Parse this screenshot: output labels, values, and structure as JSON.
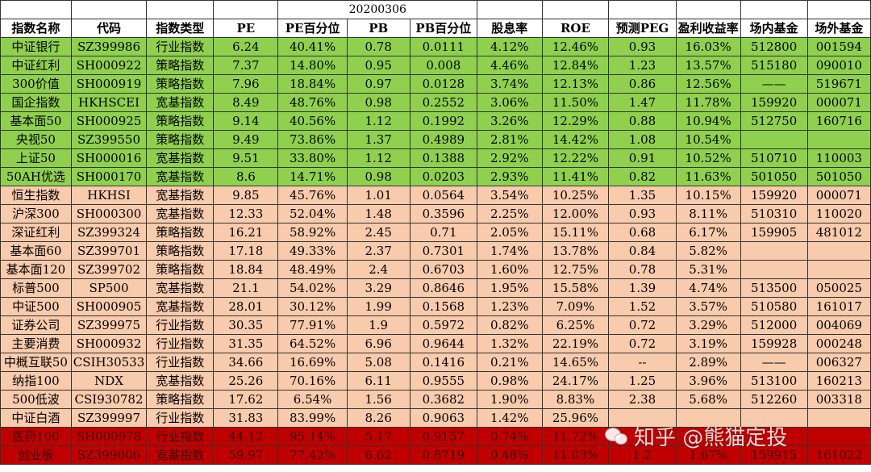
{
  "date": "20200306",
  "headers": [
    "指数名称",
    "代码",
    "指数类型",
    "PE",
    "PE百分位",
    "PB",
    "PB百分位",
    "股息率",
    "ROE",
    "预测PEG",
    "盈利收益率",
    "场内基金",
    "场外基金"
  ],
  "rows": [
    {
      "style": "green",
      "cells": [
        "中证银行",
        "SZ399986",
        "行业指数",
        "6.24",
        "40.41%",
        "0.78",
        "0.0111",
        "4.12%",
        "12.46%",
        "0.93",
        "16.03%",
        "512800",
        "001594"
      ]
    },
    {
      "style": "green",
      "cells": [
        "中证红利",
        "SH000922",
        "策略指数",
        "7.37",
        "14.80%",
        "0.95",
        "0.008",
        "4.46%",
        "12.84%",
        "1.23",
        "13.57%",
        "515180",
        "090010"
      ]
    },
    {
      "style": "green",
      "cells": [
        "300价值",
        "SH000919",
        "策略指数",
        "7.96",
        "18.84%",
        "0.97",
        "0.0128",
        "3.74%",
        "12.13%",
        "0.86",
        "12.56%",
        "——",
        "519671"
      ]
    },
    {
      "style": "green",
      "cells": [
        "国企指数",
        "HKHSCEI",
        "宽基指数",
        "8.49",
        "48.76%",
        "0.98",
        "0.2552",
        "3.06%",
        "11.50%",
        "1.47",
        "11.78%",
        "159920",
        "000071"
      ]
    },
    {
      "style": "green",
      "cells": [
        "基本面50",
        "SH000925",
        "策略指数",
        "9.14",
        "40.56%",
        "1.12",
        "0.1992",
        "3.26%",
        "12.29%",
        "0.88",
        "10.94%",
        "512750",
        "160716"
      ]
    },
    {
      "style": "green",
      "cells": [
        "央视50",
        "SZ399550",
        "策略指数",
        "9.49",
        "73.86%",
        "1.37",
        "0.4989",
        "2.81%",
        "14.42%",
        "1.08",
        "10.54%",
        "",
        ""
      ]
    },
    {
      "style": "green",
      "cells": [
        "上证50",
        "SH000016",
        "宽基指数",
        "9.51",
        "33.80%",
        "1.12",
        "0.1388",
        "2.92%",
        "12.22%",
        "0.91",
        "10.52%",
        "510710",
        "110003"
      ]
    },
    {
      "style": "green",
      "cells": [
        "50AH优选",
        "SH000170",
        "宽基指数",
        "8.6",
        "14.71%",
        "0.98",
        "0.0203",
        "2.93%",
        "11.41%",
        "0.82",
        "11.63%",
        "501050",
        "501050"
      ]
    },
    {
      "style": "peach",
      "cells": [
        "恒生指数",
        "HKHSI",
        "宽基指数",
        "9.85",
        "45.76%",
        "1.01",
        "0.0564",
        "3.54%",
        "10.25%",
        "1.35",
        "10.15%",
        "159920",
        "000071"
      ]
    },
    {
      "style": "peach",
      "cells": [
        "沪深300",
        "SH000300",
        "宽基指数",
        "12.33",
        "52.04%",
        "1.48",
        "0.3596",
        "2.25%",
        "12.00%",
        "0.93",
        "8.11%",
        "510310",
        "110020"
      ]
    },
    {
      "style": "peach",
      "cells": [
        "深证红利",
        "SZ399324",
        "策略指数",
        "16.21",
        "58.92%",
        "2.45",
        "0.71",
        "2.05%",
        "15.11%",
        "0.68",
        "6.17%",
        "159905",
        "481012"
      ]
    },
    {
      "style": "peach",
      "cells": [
        "基本面60",
        "SZ399701",
        "策略指数",
        "17.18",
        "49.33%",
        "2.37",
        "0.7301",
        "1.74%",
        "13.78%",
        "0.84",
        "5.82%",
        "",
        ""
      ]
    },
    {
      "style": "peach",
      "cells": [
        "基本面120",
        "SZ399702",
        "策略指数",
        "18.84",
        "48.49%",
        "2.4",
        "0.6703",
        "1.60%",
        "12.75%",
        "0.78",
        "5.31%",
        "",
        ""
      ]
    },
    {
      "style": "peach",
      "cells": [
        "标普500",
        "SP500",
        "宽基指数",
        "21.1",
        "54.02%",
        "3.29",
        "0.8646",
        "1.95%",
        "15.58%",
        "1.39",
        "4.74%",
        "513500",
        "050025"
      ]
    },
    {
      "style": "peach",
      "cells": [
        "中证500",
        "SH000905",
        "宽基指数",
        "28.01",
        "30.12%",
        "1.99",
        "0.1568",
        "1.23%",
        "7.09%",
        "1.52",
        "3.57%",
        "510580",
        "161017"
      ]
    },
    {
      "style": "peach",
      "cells": [
        "证券公司",
        "SZ399975",
        "行业指数",
        "30.35",
        "77.91%",
        "1.9",
        "0.5972",
        "0.82%",
        "6.25%",
        "0.72",
        "3.29%",
        "512000",
        "004069"
      ]
    },
    {
      "style": "peach",
      "cells": [
        "主要消费",
        "SH000932",
        "行业指数",
        "31.35",
        "64.52%",
        "6.96",
        "0.9644",
        "1.32%",
        "22.19%",
        "0.72",
        "3.19%",
        "159928",
        "000248"
      ]
    },
    {
      "style": "peach",
      "cells": [
        "中概互联50",
        "CSIH30533",
        "行业指数",
        "34.66",
        "16.69%",
        "5.08",
        "0.1416",
        "0.21%",
        "14.65%",
        "--",
        "2.89%",
        "——",
        "006327"
      ]
    },
    {
      "style": "peach",
      "cells": [
        "纳指100",
        "NDX",
        "宽基指数",
        "25.26",
        "70.16%",
        "6.11",
        "0.9555",
        "0.98%",
        "24.17%",
        "1.25",
        "3.96%",
        "513100",
        "160213"
      ]
    },
    {
      "style": "peach",
      "cells": [
        "500低波",
        "CSI930782",
        "策略指数",
        "17.62",
        "6.54%",
        "1.56",
        "0.3682",
        "1.90%",
        "8.83%",
        "2.38",
        "5.68%",
        "512260",
        "003318"
      ]
    },
    {
      "style": "peach",
      "cells": [
        "中证白酒",
        "SZ399997",
        "行业指数",
        "31.83",
        "83.99%",
        "8.26",
        "0.9063",
        "1.42%",
        "25.96%",
        "",
        "",
        "",
        ""
      ]
    },
    {
      "style": "red",
      "cells": [
        "医药100",
        "SH000978",
        "行业指数",
        "44.12",
        "95.14%",
        "5.17",
        "0.9157",
        "0.74%",
        "11.72%",
        "",
        "",
        "",
        ""
      ]
    },
    {
      "style": "red",
      "cells": [
        "创业板",
        "SZ399006",
        "宽基指数",
        "59.97",
        "77.42%",
        "6.62",
        "0.8719",
        "0.48%",
        "11.03%",
        "1.2",
        "1.67%",
        "159915",
        "161022"
      ]
    }
  ],
  "watermark": "知乎 @熊猫定投"
}
